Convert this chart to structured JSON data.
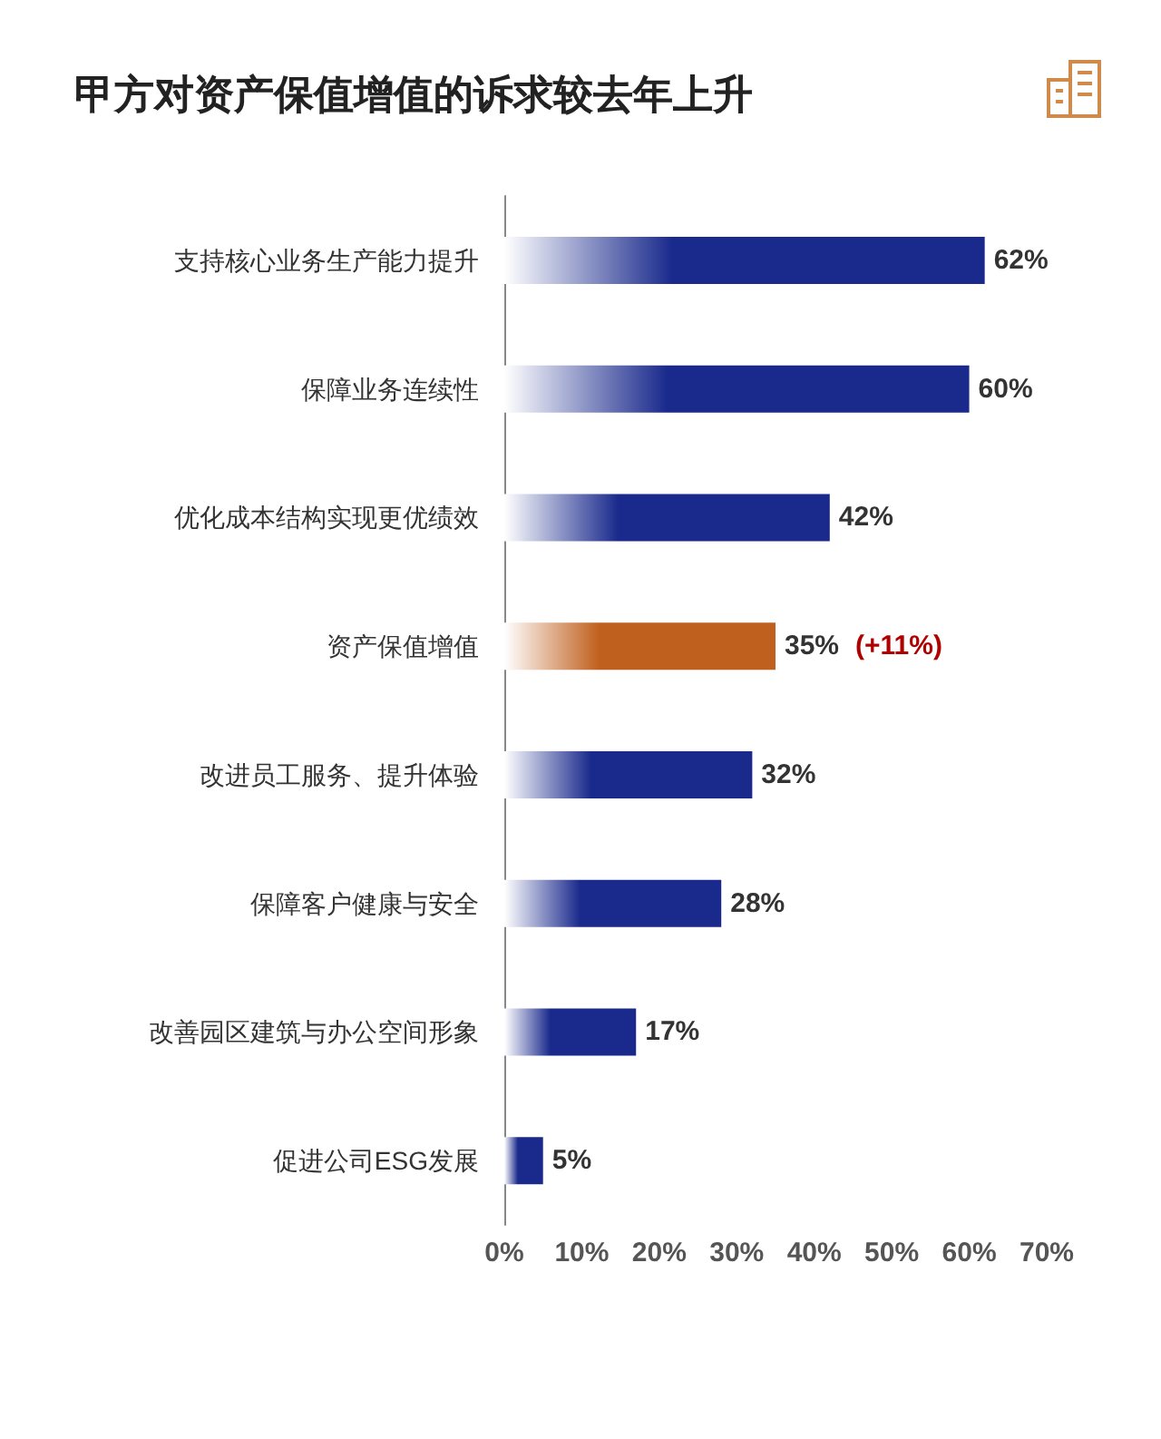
{
  "chart_data": {
    "type": "bar",
    "orientation": "horizontal",
    "title": "甲方对资产保值增值的诉求较去年上升",
    "categories": [
      "支持核心业务生产能力提升",
      "保障业务连续性",
      "优化成本结构实现更优绩效",
      "资产保值增值",
      "改进员工服务、提升体验",
      "保障客户健康与安全",
      "改善园区建筑与办公空间形象",
      "促进公司ESG发展"
    ],
    "values": [
      62,
      60,
      42,
      35,
      32,
      28,
      17,
      5
    ],
    "value_labels": [
      "62%",
      "60%",
      "42%",
      "35%",
      "32%",
      "28%",
      "17%",
      "5%"
    ],
    "colors": [
      "#1a2a8c",
      "#1a2a8c",
      "#1a2a8c",
      "#c0601e",
      "#1a2a8c",
      "#1a2a8c",
      "#1a2a8c",
      "#1a2a8c"
    ],
    "xlim": [
      0,
      70
    ],
    "xticks": [
      {
        "value": 0,
        "label": "0%"
      },
      {
        "value": 10,
        "label": "10%"
      },
      {
        "value": 20,
        "label": "20%"
      },
      {
        "value": 30,
        "label": "30%"
      },
      {
        "value": 40,
        "label": "40%"
      },
      {
        "value": 50,
        "label": "50%"
      },
      {
        "value": 60,
        "label": "60%"
      },
      {
        "value": 70,
        "label": "70%"
      }
    ],
    "annotations": [
      {
        "text": "(+11%)",
        "x": 35,
        "y": "资产保值增值"
      }
    ],
    "grid": false
  }
}
